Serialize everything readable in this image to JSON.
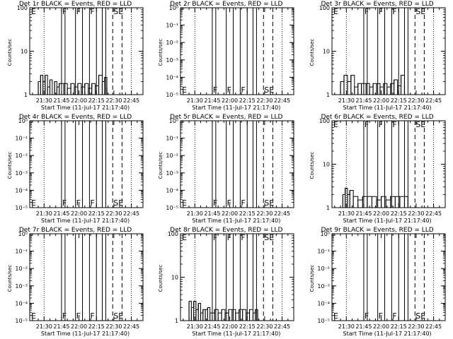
{
  "chart_data": [
    {
      "type": "line",
      "title": "Det 1r BLACK = Events, RED = LLD",
      "ylabel": "Counts/sec",
      "xlabel": "Start Time (11-Jul-17 21:17:40)",
      "yscale": "log",
      "yticks": [
        "1",
        "10",
        "100"
      ],
      "ylim": [
        1,
        100
      ],
      "xlim": [
        "21:17:40",
        "22:55"
      ],
      "xticks": [
        "21:30",
        "21:45",
        "22:00",
        "22:15",
        "22:30",
        "22:45"
      ],
      "annotations": [
        "E",
        "F",
        "F",
        "F",
        "S",
        "E"
      ],
      "x": [
        "21:25",
        "21:27",
        "21:29",
        "21:31",
        "21:33",
        "21:35",
        "21:37",
        "21:39",
        "21:41",
        "21:43",
        "21:47",
        "21:50",
        "21:53",
        "21:56",
        "21:59",
        "22:02",
        "22:05",
        "22:08",
        "22:11",
        "22:14",
        "22:17",
        "22:20",
        "22:22",
        "22:24"
      ],
      "y": [
        2,
        2.8,
        2,
        2.8,
        1.5,
        2.2,
        1,
        2,
        1.5,
        1.8,
        1.8,
        1.4,
        1.8,
        1.5,
        1.8,
        1.5,
        1.8,
        1.4,
        1.8,
        1.6,
        2.8,
        2,
        2.5,
        1.5
      ]
    },
    {
      "type": "line",
      "title": "Det 2r BLACK = Events, RED = LLD",
      "ylabel": "Counts/sec",
      "xlabel": "Start Time (11-Jul-17 21:17:40)",
      "yscale": "log",
      "yticks": [
        "10⁰",
        "10⁻¹",
        "10⁻²",
        "10⁻³",
        "10⁻⁴",
        "10⁻⁵"
      ],
      "ylim": [
        1e-05,
        1
      ],
      "xlim": [
        "21:17:40",
        "22:55"
      ],
      "xticks": [
        "21:30",
        "21:45",
        "22:00",
        "22:15",
        "22:30",
        "22:45"
      ],
      "annotations": [
        "E",
        "F",
        "F",
        "F",
        "S",
        "E"
      ],
      "x": [],
      "y": []
    },
    {
      "type": "line",
      "title": "Det 3r BLACK = Events, RED = LLD",
      "ylabel": "Counts/sec",
      "xlabel": "Start Time (11-Jul-17 21:17:40)",
      "yscale": "log",
      "yticks": [
        "1",
        "10",
        "100"
      ],
      "ylim": [
        1,
        100
      ],
      "xlim": [
        "21:17:40",
        "22:55"
      ],
      "xticks": [
        "21:30",
        "21:45",
        "22:00",
        "22:15",
        "22:30",
        "22:45"
      ],
      "annotations": [
        "E",
        "F",
        "F",
        "F",
        "S",
        "E"
      ],
      "x": [
        "21:25",
        "21:28",
        "21:31",
        "21:34",
        "21:37",
        "21:40",
        "21:43",
        "21:47",
        "21:50",
        "21:53",
        "21:56",
        "21:59",
        "22:02",
        "22:05",
        "22:08",
        "22:11",
        "22:14",
        "22:17",
        "22:20"
      ],
      "y": [
        2,
        2.8,
        2,
        2.8,
        1.5,
        1.8,
        1.8,
        1.8,
        1.5,
        1.8,
        1.8,
        1.5,
        1.8,
        1.5,
        1.8,
        2.2,
        1.6,
        2.8,
        2
      ]
    },
    {
      "type": "line",
      "title": "Det 4r BLACK = Events, RED = LLD",
      "ylabel": "Counts/sec",
      "xlabel": "Start Time (11-Jul-17 21:17:40)",
      "yscale": "log",
      "yticks": [
        "10⁰",
        "10⁻¹",
        "10⁻²",
        "10⁻³",
        "10⁻⁴",
        "10⁻⁵"
      ],
      "ylim": [
        1e-05,
        1
      ],
      "xlim": [
        "21:17:40",
        "22:55"
      ],
      "xticks": [
        "21:30",
        "21:45",
        "22:00",
        "22:15",
        "22:30",
        "22:45"
      ],
      "annotations": [
        "E",
        "F",
        "F",
        "F",
        "S",
        "E"
      ],
      "x": [],
      "y": []
    },
    {
      "type": "line",
      "title": "Det 5r BLACK = Events, RED = LLD",
      "ylabel": "Counts/sec",
      "xlabel": "Start Time (11-Jul-17 21:17:40)",
      "yscale": "log",
      "yticks": [
        "10⁰",
        "10⁻¹",
        "10⁻²",
        "10⁻³",
        "10⁻⁴",
        "10⁻⁵"
      ],
      "ylim": [
        1e-05,
        1
      ],
      "xlim": [
        "21:17:40",
        "22:55"
      ],
      "xticks": [
        "21:30",
        "21:45",
        "22:00",
        "22:15",
        "22:30",
        "22:45"
      ],
      "annotations": [
        "E",
        "F",
        "F",
        "F",
        "S",
        "E"
      ],
      "x": [],
      "y": []
    },
    {
      "type": "line",
      "title": "Det 6r BLACK = Events, RED = LLD",
      "ylabel": "Counts/sec",
      "xlabel": "Start Time (11-Jul-17 21:17:40)",
      "yscale": "log",
      "yticks": [
        "1",
        "10",
        "100"
      ],
      "ylim": [
        1,
        100
      ],
      "xlim": [
        "21:17:40",
        "22:55"
      ],
      "xticks": [
        "21:30",
        "21:45",
        "22:00",
        "22:15",
        "22:30",
        "22:45"
      ],
      "annotations": [
        "E",
        "F",
        "F",
        "F",
        "S",
        "E"
      ],
      "x": [
        "21:27",
        "21:29",
        "21:31",
        "21:33",
        "21:36",
        "21:40",
        "21:44",
        "21:48",
        "21:52",
        "21:56",
        "22:00",
        "22:04",
        "22:08",
        "22:12",
        "22:16",
        "22:20",
        "22:23"
      ],
      "y": [
        2,
        2.8,
        2,
        2.5,
        1.8,
        1.5,
        1.8,
        1.8,
        1.8,
        1.5,
        1.8,
        1.5,
        1.8,
        1.8,
        1.8,
        1.8,
        1.8
      ]
    },
    {
      "type": "line",
      "title": "Det 7r BLACK = Events, RED = LLD",
      "ylabel": "Counts/sec",
      "xlabel": "Start Time (11-Jul-17 21:17:40)",
      "yscale": "log",
      "yticks": [
        "10⁰",
        "10⁻¹",
        "10⁻²",
        "10⁻³",
        "10⁻⁴",
        "10⁻⁵"
      ],
      "ylim": [
        1e-05,
        1
      ],
      "xlim": [
        "21:17:40",
        "22:55"
      ],
      "xticks": [
        "21:30",
        "21:45",
        "22:00",
        "22:15",
        "22:30",
        "22:45"
      ],
      "annotations": [
        "E",
        "F",
        "F",
        "F",
        "S",
        "E"
      ],
      "x": [],
      "y": []
    },
    {
      "type": "line",
      "title": "Det 8r BLACK = Events, RED = LLD",
      "ylabel": "Counts/sec",
      "xlabel": "Start Time (11-Jul-17 21:17:40)",
      "yscale": "log",
      "yticks": [
        "1",
        "10",
        "100"
      ],
      "ylim": [
        1,
        100
      ],
      "xlim": [
        "21:17:40",
        "22:55"
      ],
      "xticks": [
        "21:30",
        "21:45",
        "22:00",
        "22:15",
        "22:30",
        "22:45"
      ],
      "annotations": [
        "E",
        "F",
        "F",
        "F",
        "S",
        "E"
      ],
      "x": [
        "21:25",
        "21:27",
        "21:29",
        "21:31",
        "21:33",
        "21:35",
        "21:37",
        "21:39",
        "21:41",
        "21:43",
        "21:47",
        "21:50",
        "21:53",
        "21:56",
        "21:59",
        "22:02",
        "22:05",
        "22:08",
        "22:11",
        "22:14",
        "22:17",
        "22:20",
        "22:22",
        "22:24"
      ],
      "y": [
        2.8,
        2,
        2.8,
        1.8,
        2.5,
        1.5,
        1.8,
        1.8,
        2,
        1.5,
        1.8,
        1.5,
        1.8,
        1.5,
        1.8,
        1.8,
        1.5,
        1.8,
        1.8,
        1.5,
        1.8,
        1.5,
        1.8,
        1.8
      ]
    },
    {
      "type": "line",
      "title": "Det 9r BLACK = Events, RED = LLD",
      "ylabel": "Counts/sec",
      "xlabel": "Start Time (11-Jul-17 21:17:40)",
      "yscale": "log",
      "yticks": [
        "10⁰",
        "10⁻¹",
        "10⁻²",
        "10⁻³",
        "10⁻⁴",
        "10⁻⁵"
      ],
      "ylim": [
        1e-05,
        1
      ],
      "xlim": [
        "21:17:40",
        "22:55"
      ],
      "xticks": [
        "21:30",
        "21:45",
        "22:00",
        "22:15",
        "22:30",
        "22:45"
      ],
      "annotations": [
        "E",
        "F",
        "F",
        "F",
        "S",
        "E"
      ],
      "x": [],
      "y": []
    }
  ],
  "markers": {
    "dotted": [
      "21:30",
      "22:45"
    ],
    "solid": [
      [
        "21:45",
        "21:48"
      ],
      [
        "21:57",
        "22:03"
      ],
      [
        "22:09",
        "22:15"
      ],
      [
        "22:20",
        "22:23"
      ]
    ],
    "dashed": [
      "22:29",
      "22:37"
    ]
  }
}
